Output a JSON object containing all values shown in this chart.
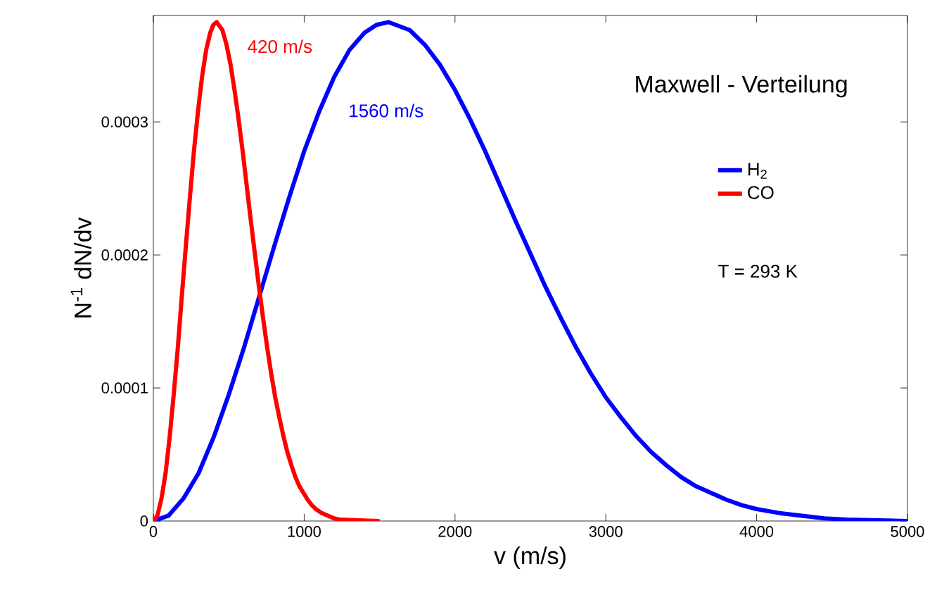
{
  "chart_data": {
    "type": "line",
    "title": "Maxwell - Verteilung",
    "xlabel": "v (m/s)",
    "ylabel": "N$^{-1}$ dN/dv",
    "xlim": [
      0,
      5000
    ],
    "ylim": [
      0,
      0.00038
    ],
    "xticks": [
      0,
      1000,
      2000,
      3000,
      4000,
      5000
    ],
    "yticks": [
      0,
      0.0001,
      0.0002,
      0.0003
    ],
    "grid": false,
    "legend": "right",
    "marker": "none",
    "line_style": "solid",
    "series": [
      {
        "name": "H$_{2}$",
        "color": "#0000ff",
        "x": [
          0,
          100,
          200,
          300,
          400,
          500,
          600,
          700,
          800,
          900,
          1000,
          1100,
          1200,
          1300,
          1400,
          1480,
          1560,
          1700,
          1800,
          1900,
          2000,
          2100,
          2200,
          2300,
          2400,
          2500,
          2600,
          2700,
          2800,
          2900,
          3000,
          3100,
          3200,
          3300,
          3400,
          3500,
          3600,
          3700,
          3800,
          3900,
          4000,
          4150,
          4300,
          4450,
          4600,
          5000
        ],
        "values": [
          0,
          4e-06,
          1.7e-05,
          3.6e-05,
          6.3e-05,
          9.5e-05,
          0.00013,
          0.000168,
          0.000206,
          0.000243,
          0.000278,
          0.000308,
          0.000334,
          0.000354,
          0.000367,
          0.000373,
          0.000375,
          0.000369,
          0.000358,
          0.000343,
          0.000324,
          0.000302,
          0.000278,
          0.000252,
          0.000226,
          0.000201,
          0.000176,
          0.000153,
          0.000131,
          0.000111,
          9.3e-05,
          7.8e-05,
          6.4e-05,
          5.2e-05,
          4.2e-05,
          3.3e-05,
          2.6e-05,
          2.1e-05,
          1.6e-05,
          1.2e-05,
          9e-06,
          6e-06,
          4e-06,
          2e-06,
          1e-06,
          0
        ]
      },
      {
        "name": "CO",
        "color": "#ff0000",
        "x": [
          0,
          27,
          54,
          81,
          108,
          135,
          162,
          188,
          215,
          242,
          269,
          296,
          323,
          350,
          377,
          398,
          420,
          458,
          485,
          512,
          538,
          565,
          592,
          619,
          646,
          673,
          700,
          727,
          754,
          781,
          808,
          835,
          862,
          888,
          915,
          942,
          969,
          996,
          1023,
          1050,
          1077,
          1117,
          1158,
          1198,
          1238,
          1500
        ],
        "values": [
          0,
          4e-06,
          1.7e-05,
          3.6e-05,
          6.3e-05,
          9.5e-05,
          0.00013,
          0.000168,
          0.000206,
          0.000243,
          0.000278,
          0.000308,
          0.000334,
          0.000354,
          0.000367,
          0.000373,
          0.000375,
          0.000369,
          0.000358,
          0.000343,
          0.000324,
          0.000302,
          0.000278,
          0.000252,
          0.000226,
          0.000201,
          0.000176,
          0.000153,
          0.000131,
          0.000111,
          9.3e-05,
          7.8e-05,
          6.4e-05,
          5.2e-05,
          4.2e-05,
          3.3e-05,
          2.6e-05,
          2.1e-05,
          1.6e-05,
          1.2e-05,
          9e-06,
          6e-06,
          4e-06,
          2e-06,
          1e-06,
          0
        ]
      }
    ],
    "annotations": [
      "420 m/s",
      "1560 m/s",
      "T = 293 K"
    ]
  }
}
